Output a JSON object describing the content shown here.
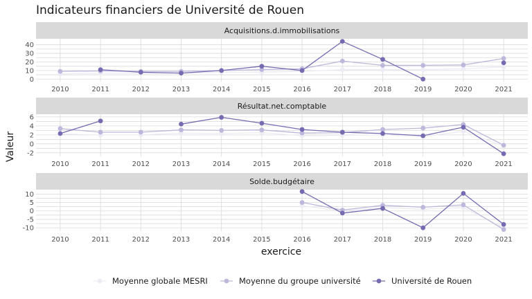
{
  "chart_data": {
    "type": "line",
    "title": "Indicateurs financiers de Université de Rouen",
    "xlabel": "exercice",
    "ylabel": "Valeur",
    "x": [
      2010,
      2011,
      2012,
      2013,
      2014,
      2015,
      2016,
      2017,
      2018,
      2019,
      2020,
      2021
    ],
    "grid": true,
    "legend_position": "bottom",
    "series_styles": [
      {
        "name": "Moyenne globale MESRI",
        "color": "#eeebf4"
      },
      {
        "name": "Moyenne du groupe université",
        "color": "#bcb7db"
      },
      {
        "name": "Université de Rouen",
        "color": "#756bb1"
      }
    ],
    "panels": [
      {
        "title": "Acquisitions.d.immobilisations",
        "yticks": [
          0,
          10,
          20,
          30,
          40
        ],
        "ylim": [
          -3,
          47
        ],
        "series": [
          {
            "name": "Moyenne globale MESRI",
            "values": [
              6,
              7,
              7,
              7,
              8,
              8,
              9,
              11,
              11,
              11,
              12,
              14
            ]
          },
          {
            "name": "Moyenne du groupe université",
            "values": [
              9,
              9.5,
              9,
              9,
              10,
              11,
              12,
              21,
              16,
              16,
              16.5,
              24
            ]
          },
          {
            "name": "Université de Rouen",
            "values": [
              null,
              11,
              8,
              7,
              10,
              15,
              10,
              44,
              23,
              0,
              null,
              19
            ]
          }
        ]
      },
      {
        "title": "Résultat.net.comptable",
        "yticks": [
          -2,
          0,
          2,
          4,
          6
        ],
        "ylim": [
          -2.8,
          6.6
        ],
        "series": [
          {
            "name": "Moyenne globale MESRI",
            "values": [
              2.2,
              2,
              2,
              2.4,
              2.3,
              2.5,
              1.8,
              1.9,
              2,
              1.6,
              2.8,
              -0.5
            ]
          },
          {
            "name": "Moyenne du groupe université",
            "values": [
              3.4,
              2.6,
              2.6,
              3.1,
              3,
              3.1,
              2.4,
              2.5,
              3.2,
              3.5,
              4.3,
              -0.3
            ]
          },
          {
            "name": "Université de Rouen",
            "values": [
              2.3,
              5.1,
              null,
              4.4,
              5.9,
              4.6,
              3.2,
              2.6,
              2.3,
              1.8,
              3.7,
              -2.2
            ]
          }
        ]
      },
      {
        "title": "Solde.budgétaire",
        "yticks": [
          -10,
          -5,
          0,
          5,
          10
        ],
        "ylim": [
          -12,
          12.6
        ],
        "series": [
          {
            "name": "Moyenne globale MESRI",
            "values": [
              null,
              null,
              null,
              null,
              null,
              null,
              3,
              0,
              2,
              1,
              2,
              -10
            ]
          },
          {
            "name": "Moyenne du groupe université",
            "values": [
              null,
              null,
              null,
              null,
              null,
              null,
              5,
              0.5,
              3.3,
              2.2,
              3.6,
              -11
            ]
          },
          {
            "name": "Université de Rouen",
            "values": [
              null,
              null,
              null,
              null,
              null,
              null,
              11.5,
              -1.3,
              1.5,
              -10,
              10.4,
              -8
            ]
          }
        ]
      }
    ]
  }
}
